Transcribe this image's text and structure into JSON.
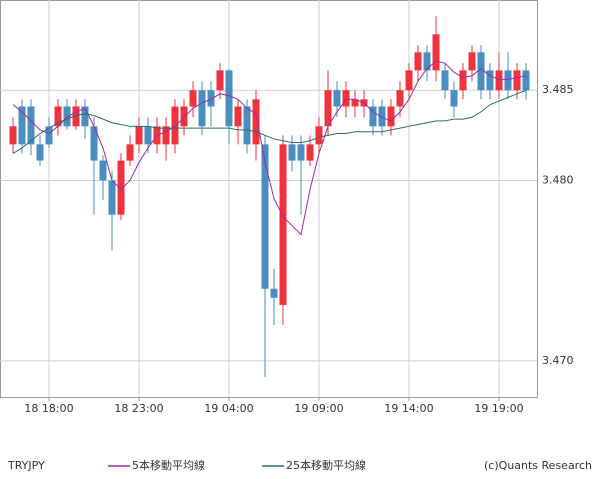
{
  "chart_data": {
    "type": "candlestick",
    "symbol": "TRYJPY",
    "credit": "(c)Quants Research",
    "categories": [
      null,
      null,
      null,
      null,
      "18 18:00",
      null,
      null,
      null,
      null,
      null,
      null,
      null,
      null,
      null,
      "18 23:00",
      null,
      null,
      null,
      null,
      null,
      null,
      null,
      null,
      null,
      "19 04:00",
      null,
      null,
      null,
      null,
      null,
      null,
      null,
      null,
      null,
      "19 09:00",
      null,
      null,
      null,
      null,
      null,
      null,
      null,
      null,
      null,
      "19 14:00",
      null,
      null,
      null,
      null,
      null,
      null,
      null,
      null,
      null,
      "19 19:00",
      null,
      null,
      null
    ],
    "open": [
      3.482,
      3.4841,
      3.4841,
      3.482,
      3.483,
      3.483,
      3.4841,
      3.483,
      3.4841,
      3.483,
      3.4811,
      3.48,
      3.4781,
      3.4811,
      3.482,
      3.483,
      3.482,
      3.482,
      3.482,
      3.483,
      3.4841,
      3.485,
      3.485,
      3.485,
      3.4861,
      3.483,
      3.4841,
      3.482,
      3.482,
      3.474,
      3.4731,
      3.482,
      3.482,
      3.4811,
      3.482,
      3.483,
      3.485,
      3.4841,
      3.4841,
      3.4841,
      3.4841,
      3.4841,
      3.483,
      3.4841,
      3.485,
      3.4861,
      3.4871,
      3.4861,
      3.4861,
      3.485,
      3.485,
      3.4861,
      3.4871,
      3.4861,
      3.485,
      3.4861,
      3.485,
      3.4861
    ],
    "high": [
      3.4835,
      3.4845,
      3.4845,
      3.4825,
      3.4835,
      3.4845,
      3.4845,
      3.4845,
      3.4845,
      3.4835,
      3.4814,
      3.4805,
      3.4815,
      3.4825,
      3.4835,
      3.4835,
      3.4835,
      3.4835,
      3.4845,
      3.4845,
      3.4855,
      3.4855,
      3.4855,
      3.4865,
      3.4862,
      3.4845,
      3.4845,
      3.485,
      3.4825,
      3.4751,
      3.4825,
      3.4825,
      3.4825,
      3.4825,
      3.4835,
      3.4861,
      3.4855,
      3.4855,
      3.485,
      3.485,
      3.4845,
      3.4845,
      3.4845,
      3.4855,
      3.4865,
      3.4875,
      3.4875,
      3.4891,
      3.4865,
      3.4855,
      3.4865,
      3.4875,
      3.4875,
      3.4865,
      3.4871,
      3.4871,
      3.4865,
      3.4865
    ],
    "low": [
      3.4815,
      3.4815,
      3.4814,
      3.4808,
      3.4818,
      3.4825,
      3.4828,
      3.4828,
      3.4823,
      3.4781,
      3.4789,
      3.4761,
      3.4778,
      3.4808,
      3.4815,
      3.4815,
      3.4815,
      3.4811,
      3.4815,
      3.4825,
      3.4835,
      3.4825,
      3.483,
      3.4845,
      3.482,
      3.482,
      3.4815,
      3.4811,
      3.4691,
      3.472,
      3.472,
      3.4805,
      3.4781,
      3.4808,
      3.4815,
      3.4825,
      3.4835,
      3.4835,
      3.4835,
      3.4835,
      3.4825,
      3.4825,
      3.4825,
      3.4835,
      3.4845,
      3.4855,
      3.4855,
      3.4855,
      3.4845,
      3.4835,
      3.4845,
      3.4855,
      3.4845,
      3.4845,
      3.4845,
      3.4845,
      3.4845,
      3.4845
    ],
    "close": [
      3.483,
      3.482,
      3.482,
      3.4811,
      3.482,
      3.4841,
      3.483,
      3.4841,
      3.483,
      3.4811,
      3.48,
      3.4781,
      3.4811,
      3.482,
      3.483,
      3.482,
      3.483,
      3.483,
      3.4841,
      3.4841,
      3.485,
      3.483,
      3.4841,
      3.4861,
      3.483,
      3.4841,
      3.482,
      3.4845,
      3.474,
      3.4735,
      3.482,
      3.4811,
      3.4811,
      3.482,
      3.483,
      3.485,
      3.4841,
      3.485,
      3.4845,
      3.4845,
      3.483,
      3.483,
      3.4841,
      3.485,
      3.4861,
      3.4871,
      3.4861,
      3.4881,
      3.485,
      3.4841,
      3.4861,
      3.4871,
      3.485,
      3.485,
      3.4861,
      3.485,
      3.4861,
      3.485
    ],
    "up_color": "#f0323c",
    "down_color": "#4a8ec0",
    "series": [
      {
        "name": "5本移動平均線",
        "color": "#9b2aa8",
        "values": [
          3.4842,
          3.4838,
          3.4833,
          3.4828,
          3.4826,
          3.483,
          3.4835,
          3.4838,
          3.484,
          3.483,
          3.4818,
          3.48,
          3.4795,
          3.48,
          3.481,
          3.4818,
          3.4825,
          3.4827,
          3.483,
          3.4835,
          3.484,
          3.4843,
          3.4845,
          3.4848,
          3.4847,
          3.4845,
          3.484,
          3.4837,
          3.481,
          3.479,
          3.478,
          3.4775,
          3.477,
          3.4795,
          3.4815,
          3.483,
          3.4838,
          3.4845,
          3.4845,
          3.4843,
          3.4838,
          3.4835,
          3.4833,
          3.4838,
          3.4845,
          3.4855,
          3.4862,
          3.4866,
          3.4865,
          3.486,
          3.4857,
          3.4858,
          3.4862,
          3.4858,
          3.4856,
          3.4856,
          3.4857,
          3.4858
        ]
      },
      {
        "name": "25本移動平均線",
        "color": "#2e6b6b",
        "values": [
          3.4815,
          3.4818,
          3.4822,
          3.4826,
          3.4829,
          3.4832,
          3.4834,
          3.4836,
          3.4837,
          3.4836,
          3.4834,
          3.4832,
          3.4831,
          3.483,
          3.483,
          3.483,
          3.4829,
          3.4829,
          3.4829,
          3.4829,
          3.4829,
          3.4829,
          3.4829,
          3.4829,
          3.4829,
          3.4828,
          3.4828,
          3.4827,
          3.4825,
          3.4823,
          3.4822,
          3.4821,
          3.4821,
          3.4822,
          3.4824,
          3.4825,
          3.4826,
          3.4826,
          3.4827,
          3.4827,
          3.4827,
          3.4827,
          3.4828,
          3.4829,
          3.483,
          3.4831,
          3.4832,
          3.4833,
          3.4833,
          3.4834,
          3.4834,
          3.4835,
          3.4838,
          3.4842,
          3.4844,
          3.4846,
          3.4848,
          3.485
        ]
      }
    ],
    "ylim": [
      3.468,
      3.49
    ],
    "yticks": [
      {
        "value": 3.47,
        "label": "3.470"
      },
      {
        "value": 3.48,
        "label": "3.480"
      },
      3.485
    ],
    "grid": true
  }
}
